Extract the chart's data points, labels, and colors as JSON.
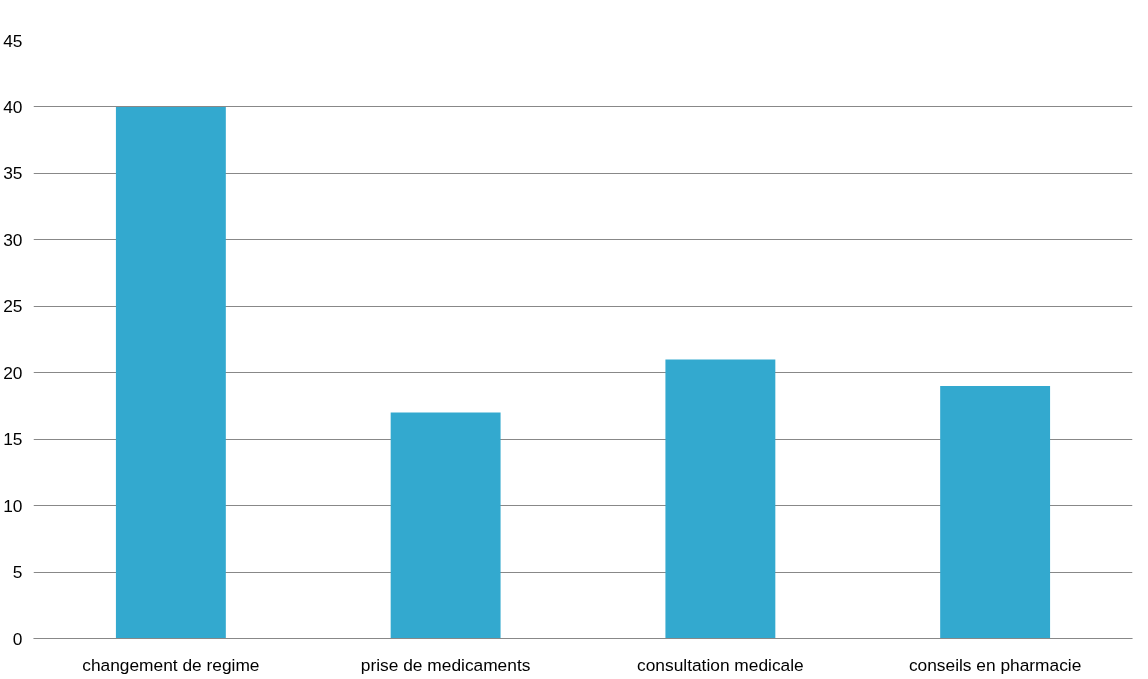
{
  "chart_data": {
    "type": "bar",
    "categories": [
      "changement de regime",
      "prise de medicaments",
      "consultation medicale",
      "conseils en pharmacie"
    ],
    "values": [
      40,
      17,
      21,
      19
    ],
    "color": "#33a9cf",
    "ylim": [
      0,
      45
    ],
    "yticks": [
      0,
      5,
      10,
      15,
      20,
      25,
      30,
      35,
      40,
      45
    ],
    "grid": "y"
  }
}
